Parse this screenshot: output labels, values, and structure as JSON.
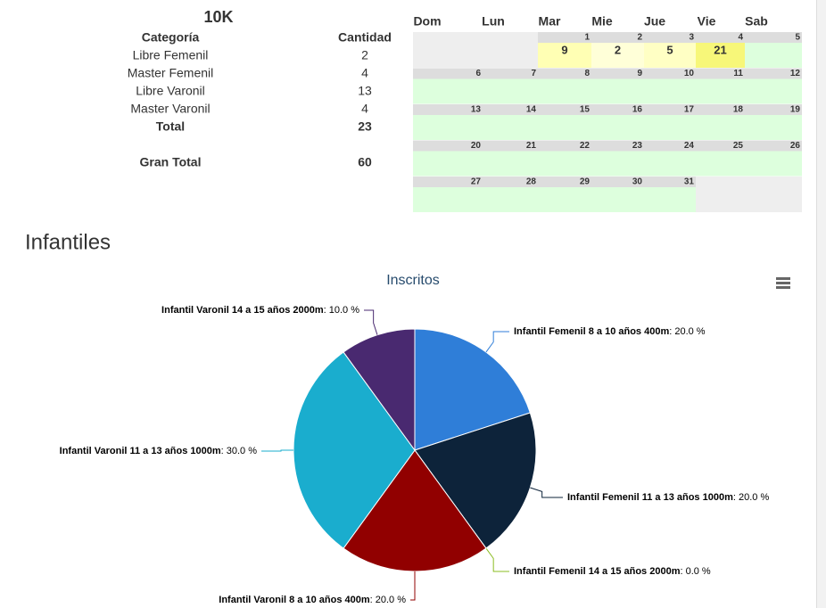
{
  "summary": {
    "title": "10K",
    "headers": [
      "Categoría",
      "Cantidad"
    ],
    "rows": [
      [
        "Libre Femenil",
        2
      ],
      [
        "Master Femenil",
        4
      ],
      [
        "Libre Varonil",
        13
      ],
      [
        "Master Varonil",
        4
      ]
    ],
    "total": [
      "Total",
      23
    ],
    "gran_total": [
      "Gran Total",
      60
    ]
  },
  "calendar": {
    "weekdays": [
      "Dom",
      "Lun",
      "Mar",
      "Mie",
      "Jue",
      "Vie",
      "Sab"
    ],
    "weeks": [
      [
        null,
        null,
        1,
        2,
        3,
        4,
        5
      ],
      [
        6,
        7,
        8,
        9,
        10,
        11,
        12
      ],
      [
        13,
        14,
        15,
        16,
        17,
        18,
        19
      ],
      [
        20,
        21,
        22,
        23,
        24,
        25,
        26
      ],
      [
        27,
        28,
        29,
        30,
        31,
        null,
        null
      ]
    ],
    "counts": [
      [
        null,
        null,
        9,
        2,
        5,
        21,
        null
      ],
      [
        null,
        null,
        null,
        null,
        null,
        null,
        null
      ],
      [
        null,
        null,
        null,
        null,
        null,
        null,
        null
      ],
      [
        null,
        null,
        null,
        null,
        null,
        null,
        null
      ],
      [
        null,
        null,
        null,
        null,
        null,
        null,
        null
      ]
    ]
  },
  "section_title": "Infantiles",
  "chart_data": {
    "type": "pie",
    "title": "Inscritos",
    "categories": [
      "Infantil Femenil 8 a 10 años 400m",
      "Infantil Femenil 11 a 13 años 1000m",
      "Infantil Femenil 14 a 15 años 2000m",
      "Infantil Varonil 8 a 10 años 400m",
      "Infantil Varonil 11 a 13 años 1000m",
      "Infantil Varonil 14 a 15 años 2000m"
    ],
    "values": [
      20.0,
      20.0,
      0.0,
      20.0,
      30.0,
      10.0
    ],
    "value_labels": [
      ": 20.0 %",
      ": 20.0 %",
      ": 0.0 %",
      ": 20.0 %",
      ": 30.0 %",
      ": 10.0 %"
    ],
    "colors": [
      "#2f7ed8",
      "#0d233a",
      "#8bbc21",
      "#910000",
      "#1aadce",
      "#492970"
    ]
  }
}
